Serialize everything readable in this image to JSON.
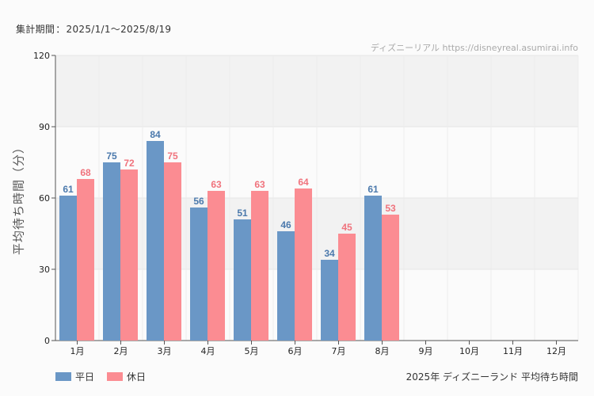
{
  "header": {
    "period_label": "集計期間",
    "period_sep": "：",
    "period_value": "2025/1/1～2025/8/19",
    "credit": "ディズニーリアル https://disneyreal.asumirai.info"
  },
  "legend": {
    "weekday": "平日",
    "holiday": "休日"
  },
  "footer_title": "2025年 ディズニーランド 平均待ち時間",
  "colors": {
    "weekday": "#6a97c6",
    "holiday": "#fb8c92",
    "weekday_label": "#4b79ac",
    "holiday_label": "#f0737d",
    "band": "#f2f2f2"
  },
  "chart_data": {
    "type": "bar",
    "ylabel": "平均待ち時間（分）",
    "categories": [
      "1月",
      "2月",
      "3月",
      "4月",
      "5月",
      "6月",
      "7月",
      "8月",
      "9月",
      "10月",
      "11月",
      "12月"
    ],
    "series": [
      {
        "name": "平日",
        "values": [
          61,
          75,
          84,
          56,
          51,
          46,
          34,
          61,
          null,
          null,
          null,
          null
        ]
      },
      {
        "name": "休日",
        "values": [
          68,
          72,
          75,
          63,
          63,
          64,
          45,
          53,
          null,
          null,
          null,
          null
        ]
      }
    ],
    "ylim": [
      0,
      120
    ],
    "yticks": [
      0,
      30,
      60,
      90,
      120
    ],
    "grid": true,
    "legend": "bottom-left"
  }
}
